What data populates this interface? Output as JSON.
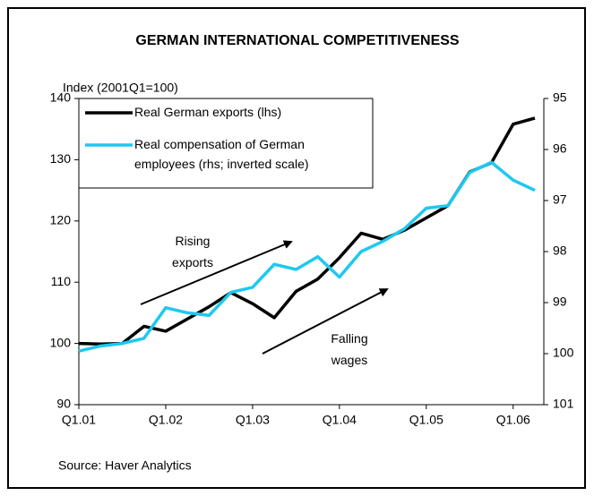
{
  "chart_data": {
    "type": "line",
    "title": "GERMAN INTERNATIONAL COMPETITIVENESS",
    "y_label": "Index (2001Q1=100)",
    "source": "Source: Haver Analytics",
    "categories": [
      "Q1.01",
      null,
      null,
      null,
      "Q1.02",
      null,
      null,
      null,
      "Q1.03",
      null,
      null,
      null,
      "Q1.04",
      null,
      null,
      null,
      "Q1.05",
      null,
      null,
      null,
      "Q1.06",
      null
    ],
    "series": [
      {
        "name": "Real German exports (lhs)",
        "color": "#000000",
        "axis": "y",
        "values": [
          100,
          99.9,
          100,
          102.8,
          102,
          104,
          106,
          108.3,
          106.5,
          104.2,
          108.5,
          110.5,
          114,
          118,
          117,
          118.5,
          120.5,
          122.5,
          128,
          129.5,
          135.8,
          136.8
        ]
      },
      {
        "name": "Real compensation of German employees (rhs; inverted scale)",
        "color": "#1ec8f0",
        "axis": "y2",
        "values": [
          99.95,
          99.85,
          99.8,
          99.7,
          99.1,
          99.2,
          99.25,
          98.8,
          98.7,
          98.25,
          98.35,
          98.1,
          98.5,
          98.0,
          97.8,
          97.55,
          97.15,
          97.1,
          96.45,
          96.25,
          96.6,
          96.8
        ]
      }
    ],
    "ylim": [
      90,
      140
    ],
    "yticks": [
      90,
      100,
      110,
      120,
      130,
      140
    ],
    "y2lim": [
      101,
      95
    ],
    "y2ticks": [
      101,
      100,
      99,
      98,
      97,
      96,
      95
    ],
    "annotations": [
      {
        "text": "Rising exports"
      },
      {
        "text": "Falling wages"
      }
    ],
    "legend": "top-left"
  }
}
